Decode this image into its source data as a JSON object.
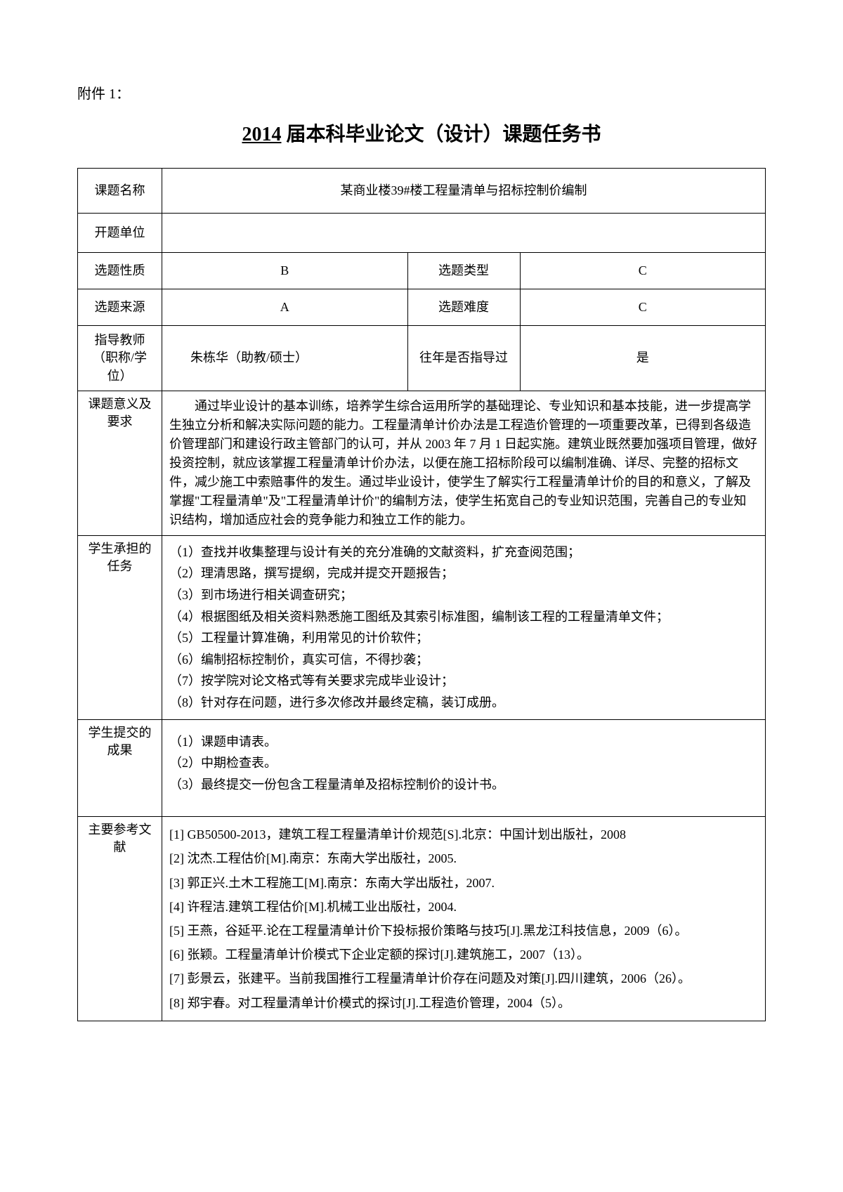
{
  "attachment_label": "附件 1：",
  "title_year": "2014",
  "title_rest": " 届本科毕业论文（设计）课题任务书",
  "table": {
    "topic_name_label": "课题名称",
    "topic_name_value": "某商业楼39#楼工程量清单与招标控制价编制",
    "open_unit_label": "开题单位",
    "open_unit_value": "",
    "nature_label": "选题性质",
    "nature_value": "B",
    "type_label": "选题类型",
    "type_value": "C",
    "source_label": "选题来源",
    "source_value": "A",
    "difficulty_label": "选题难度",
    "difficulty_value": "C",
    "advisor_label": "指导教师（职称/学位）",
    "advisor_value": "朱栋华（助教/硕士）",
    "past_guide_label": "往年是否指导过",
    "past_guide_value": "是",
    "significance_label": "课题意义及要求",
    "significance_text": "通过毕业设计的基本训练，培养学生综合运用所学的基础理论、专业知识和基本技能，进一步提高学生独立分析和解决实际问题的能力。工程量清单计价办法是工程造价管理的一项重要改革，已得到各级造价管理部门和建设行政主管部门的认可，并从 2003 年 7 月 1 日起实施。建筑业既然要加强项目管理，做好投资控制，就应该掌握工程量清单计价办法，以便在施工招标阶段可以编制准确、详尽、完整的招标文件，减少施工中索赔事件的发生。通过毕业设计，使学生了解实行工程量清单计价的目的和意义，了解及掌握\"工程量清单\"及\"工程量清单计价\"的编制方法，使学生拓宽自己的专业知识范围，完善自己的专业知识结构，增加适应社会的竞争能力和独立工作的能力。",
    "tasks_label": "学生承担的任务",
    "tasks_items": [
      "（1）查找并收集整理与设计有关的充分准确的文献资料，扩充查阅范围；",
      "（2）理清思路，撰写提纲，完成并提交开题报告；",
      "（3）到市场进行相关调查研究；",
      "（4）根据图纸及相关资料熟悉施工图纸及其索引标准图，编制该工程的工程量清单文件；",
      "（5）工程量计算准确，利用常见的计价软件；",
      "（6）编制招标控制价，真实可信，不得抄袭；",
      "（7）按学院对论文格式等有关要求完成毕业设计；",
      "（8）针对存在问题，进行多次修改并最终定稿，装订成册。"
    ],
    "results_label": "学生提交的成果",
    "results_items": [
      "（1）课题申请表。",
      "（2）中期检查表。",
      "（3）最终提交一份包含工程量清单及招标控制价的设计书。"
    ],
    "refs_label": "主要参考文献",
    "refs_items": [
      "[1] GB50500-2013，建筑工程工程量清单计价规范[S].北京：中国计划出版社，2008",
      "[2] 沈杰.工程估价[M].南京：东南大学出版社，2005.",
      "[3] 郭正兴.土木工程施工[M].南京：东南大学出版社，2007.",
      "[4] 许程洁.建筑工程估价[M].机械工业出版社，2004.",
      "[5] 王燕，谷延平.论在工程量清单计价下投标报价策略与技巧[J].黑龙江科技信息，2009（6）。",
      "[6] 张颖。工程量清单计价模式下企业定额的探讨[J].建筑施工，2007（13）。",
      "[7] 彭景云，张建平。当前我国推行工程量清单计价存在问题及对策[J].四川建筑，2006（26）。",
      "[8] 郑宇春。对工程量清单计价模式的探讨[J].工程造价管理，2004（5）。"
    ]
  }
}
